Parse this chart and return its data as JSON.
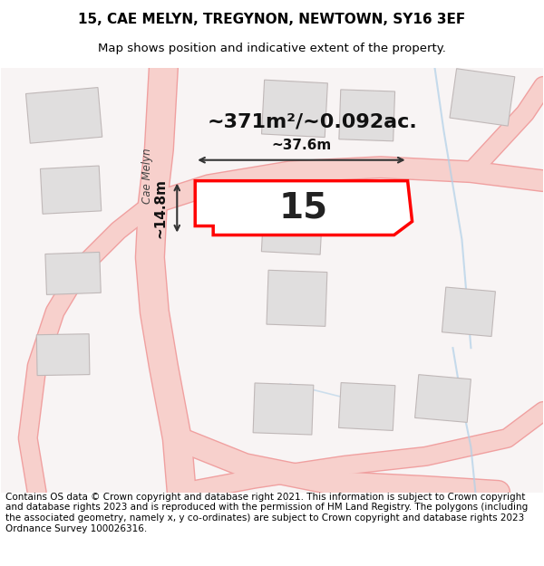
{
  "title_line1": "15, CAE MELYN, TREGYNON, NEWTOWN, SY16 3EF",
  "title_line2": "Map shows position and indicative extent of the property.",
  "footer_text": "Contains OS data © Crown copyright and database right 2021. This information is subject to Crown copyright and database rights 2023 and is reproduced with the permission of HM Land Registry. The polygons (including the associated geometry, namely x, y co-ordinates) are subject to Crown copyright and database rights 2023 Ordnance Survey 100026316.",
  "area_label": "~371m²/~0.092ac.",
  "property_number": "15",
  "dim_width": "~37.6m",
  "dim_height": "~14.8m",
  "road_label": "Cae Melyn",
  "bg_color": "#f5f0f0",
  "map_bg": "#f9f6f6",
  "road_color": "#f7d0cc",
  "road_outline": "#f0a0a0",
  "plot_color": "#ffffff",
  "plot_border": "#ff0000",
  "building_color": "#e0dede",
  "building_border": "#c8c0c0",
  "water_color": "#d0e8f0",
  "dim_line_color": "#333333",
  "title_fontsize": 11,
  "subtitle_fontsize": 9.5,
  "footer_fontsize": 7.5
}
